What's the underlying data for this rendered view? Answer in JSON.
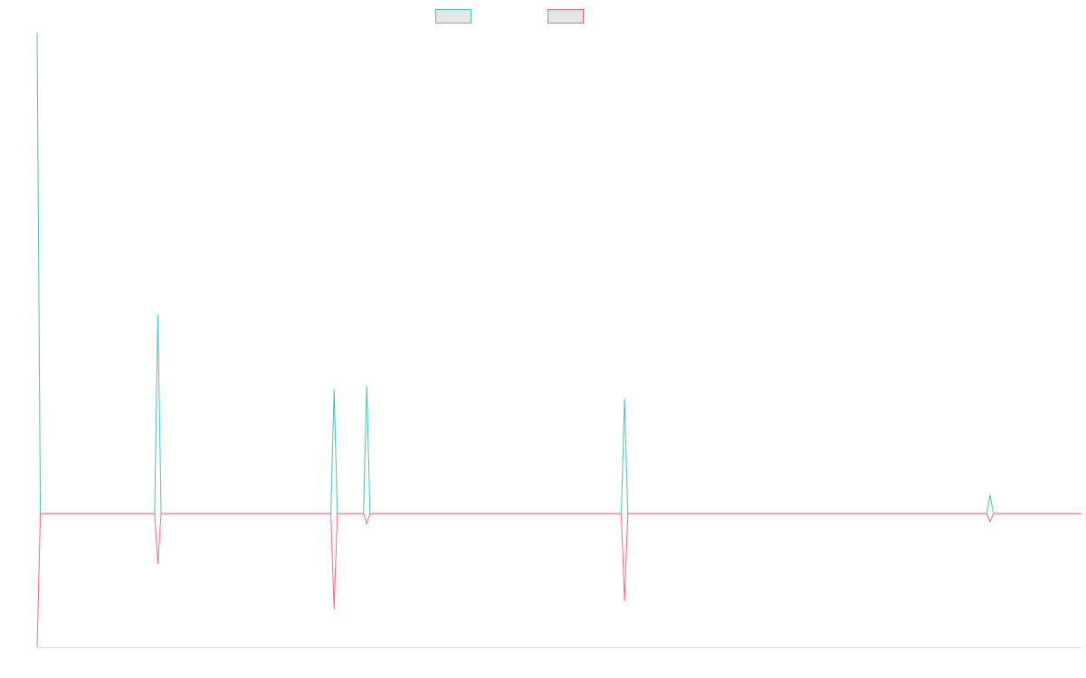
{
  "chart_data": {
    "type": "line",
    "title": "",
    "xlabel": "",
    "ylabel": "",
    "grid": false,
    "legend_position": "top-center",
    "x": [
      0,
      1,
      2,
      3,
      4,
      5,
      6,
      7,
      8,
      9,
      10,
      11,
      12,
      13,
      14,
      15,
      16,
      17,
      18,
      19,
      20,
      21,
      22,
      23,
      24,
      25,
      26,
      27,
      28,
      29,
      30,
      31,
      32,
      33,
      34,
      35,
      36,
      37,
      38,
      39,
      40,
      41,
      42,
      43,
      44,
      45,
      46,
      47,
      48,
      49,
      50,
      51,
      52,
      53,
      54,
      55,
      56,
      57,
      58,
      59,
      60,
      61,
      62,
      63,
      64,
      65,
      66,
      67,
      68,
      69,
      70,
      71,
      72,
      73,
      74,
      75,
      76,
      77,
      78,
      79,
      80,
      81,
      82,
      83,
      84,
      85,
      86,
      87,
      88,
      89,
      90,
      91,
      92,
      93,
      94,
      95,
      96,
      97,
      98,
      99,
      100,
      101,
      102,
      103,
      104,
      105,
      106,
      107,
      108,
      109,
      110,
      111,
      112,
      113,
      114,
      115,
      116,
      117,
      118,
      119,
      120,
      121,
      122,
      123,
      124,
      125,
      126,
      127,
      128,
      129,
      130,
      131,
      132,
      133,
      134,
      135,
      136,
      137,
      138,
      139,
      140,
      141,
      142,
      143,
      144,
      145,
      146,
      147,
      148,
      149,
      150,
      151,
      152,
      153,
      154,
      155,
      156,
      157,
      158,
      159,
      160,
      161,
      162,
      163,
      164,
      165,
      166,
      167,
      168,
      169,
      170,
      171,
      172,
      173,
      174,
      175,
      176,
      177,
      178,
      179,
      180,
      181,
      182,
      183,
      184,
      185,
      186,
      187,
      188,
      189,
      190,
      191,
      192,
      193,
      194,
      195,
      196,
      197,
      198,
      199,
      200,
      201,
      202,
      203,
      204,
      205,
      206,
      207,
      208,
      209,
      210,
      211,
      212,
      213,
      214,
      215,
      216,
      217,
      218,
      219,
      220,
      221,
      222,
      223,
      224,
      225,
      226,
      227,
      228,
      229,
      230,
      231,
      232,
      233,
      234,
      235,
      236,
      237,
      238,
      239,
      240,
      241,
      242,
      243,
      244,
      245,
      246,
      247,
      248,
      249,
      250,
      251,
      252,
      253,
      254,
      255,
      256,
      257,
      258,
      259,
      260,
      261,
      262,
      263,
      264,
      265,
      266,
      267,
      268,
      269,
      270,
      271,
      272,
      273,
      274,
      275,
      276,
      277,
      278,
      279,
      280,
      281,
      282,
      283,
      284,
      285,
      286,
      287,
      288,
      289,
      290,
      291,
      292,
      293,
      294,
      295,
      296,
      297,
      298,
      299,
      300,
      301,
      302,
      303,
      304,
      305,
      306,
      307,
      308,
      309,
      310,
      311,
      312,
      313,
      314,
      315,
      316,
      317,
      318,
      319,
      320
    ],
    "xlim": [
      0,
      320
    ],
    "ylim": [
      -2,
      7.2
    ],
    "series": [
      {
        "color": "#4bc0c0",
        "spikes": [
          {
            "x": 0,
            "y": 7.2
          },
          {
            "x": 37,
            "y": 2.98
          },
          {
            "x": 91,
            "y": 1.86
          },
          {
            "x": 101,
            "y": 1.92
          },
          {
            "x": 180,
            "y": 1.72
          },
          {
            "x": 292,
            "y": 0.28
          }
        ],
        "baseline": 0
      },
      {
        "color": "#ff6384",
        "spikes": [
          {
            "x": 0,
            "y": -2.0
          },
          {
            "x": 37,
            "y": -0.75
          },
          {
            "x": 91,
            "y": -1.43
          },
          {
            "x": 101,
            "y": -0.15
          },
          {
            "x": 180,
            "y": -1.31
          },
          {
            "x": 292,
            "y": -0.12
          }
        ],
        "baseline": 0
      }
    ]
  }
}
